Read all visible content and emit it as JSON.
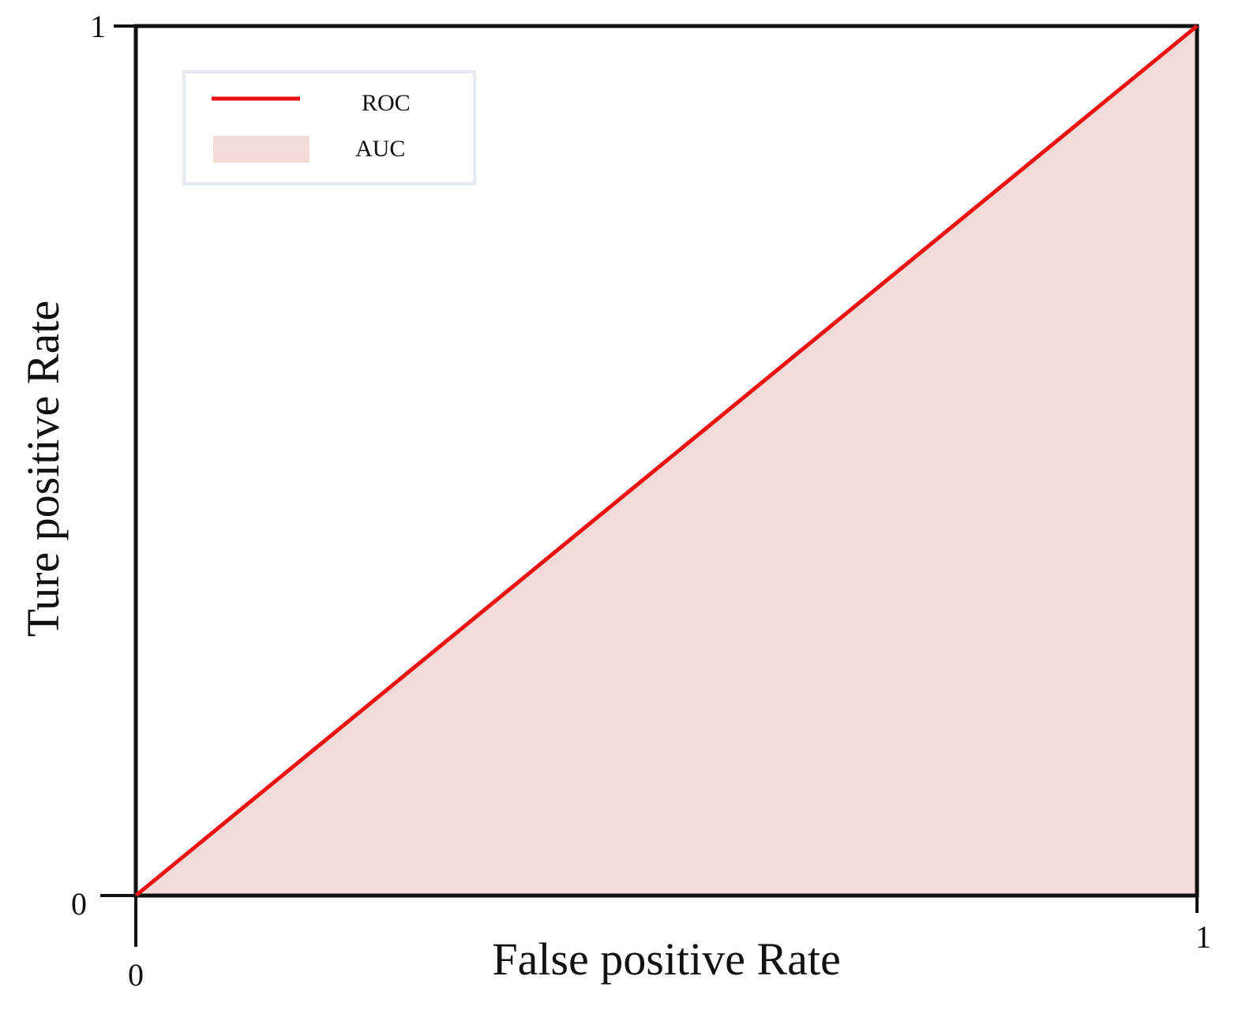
{
  "chart_data": {
    "type": "area",
    "xlabel": "False positive Rate",
    "ylabel": "Ture positive Rate",
    "xlim": [
      0,
      1
    ],
    "ylim": [
      0,
      1
    ],
    "x_ticks": [
      "0",
      "1"
    ],
    "y_ticks": [
      "0",
      "1"
    ],
    "grid": false,
    "legend": {
      "placement": "top-left",
      "entries": [
        "ROC",
        "AUC"
      ]
    },
    "series": [
      {
        "name": "ROC",
        "kind": "line",
        "color": "#ee1111",
        "x": [
          0,
          1
        ],
        "y": [
          0,
          1
        ]
      },
      {
        "name": "AUC",
        "kind": "area",
        "color": "#f2dcda",
        "x": [
          0,
          1
        ],
        "y": [
          0,
          1
        ]
      }
    ]
  }
}
